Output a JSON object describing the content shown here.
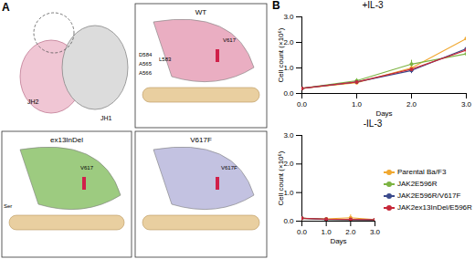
{
  "panel_labels": [
    "A",
    "B"
  ],
  "panel_a": {
    "views": [
      {
        "labels": [
          "JH2",
          "JH1"
        ]
      },
      {
        "title": "WT",
        "labels": [
          "D584",
          "A565",
          "A566",
          "L583",
          "V617"
        ]
      },
      {
        "title": "ex13InDel",
        "labels": [
          "Ser",
          "V617"
        ]
      },
      {
        "title": "V617F",
        "labels": [
          "V617F"
        ]
      }
    ]
  },
  "chart_data": [
    {
      "type": "line",
      "title": "+IL-3",
      "x": [
        0,
        1,
        2,
        3
      ],
      "xlim": [
        0,
        3
      ],
      "xticks": [
        0,
        1,
        2,
        3
      ],
      "ylim": [
        0,
        3
      ],
      "yticks": [
        0,
        1,
        2,
        3
      ],
      "x_label": "Days",
      "y_label": "Cell count (×10⁶)",
      "marker": "circle",
      "series": [
        {
          "name": "Parental Ba/F3",
          "color": "#f0a830",
          "values": [
            0.2,
            0.42,
            1.0,
            2.15
          ],
          "errors": [
            0.02,
            0.08,
            0.2,
            0.7
          ]
        },
        {
          "name": "JAK2E596R",
          "color": "#7cb342",
          "values": [
            0.2,
            0.5,
            1.15,
            1.55
          ],
          "errors": [
            0.02,
            0.08,
            0.15,
            0.2
          ]
        },
        {
          "name": "JAK2E596R/V617F",
          "color": "#3b4a8c",
          "values": [
            0.2,
            0.45,
            0.9,
            1.75
          ],
          "errors": [
            0.02,
            0.06,
            0.12,
            0.2
          ]
        },
        {
          "name": "JAK2ex13InDel/E596R",
          "color": "#c62839",
          "values": [
            0.2,
            0.45,
            0.95,
            1.7
          ],
          "errors": [
            0.02,
            0.06,
            0.1,
            0.15
          ]
        }
      ]
    },
    {
      "type": "line",
      "title": "-IL-3",
      "x": [
        0,
        1,
        2,
        3
      ],
      "xlim": [
        0,
        3
      ],
      "xticks": [
        0,
        1,
        2,
        3
      ],
      "ylim": [
        0,
        3
      ],
      "yticks": [
        0,
        1,
        2,
        3
      ],
      "x_label": "Days",
      "y_label": "Cell count (×10⁶)",
      "marker": "circle",
      "legend": "right",
      "series": [
        {
          "name": "Parental Ba/F3",
          "color": "#f0a830",
          "values": [
            0.1,
            0.08,
            0.12,
            0.05
          ],
          "errors": [
            0.02,
            0.02,
            0.1,
            0.02
          ]
        },
        {
          "name": "JAK2E596R",
          "color": "#7cb342",
          "values": [
            0.1,
            0.06,
            0.05,
            0.04
          ],
          "errors": [
            0.02,
            0.02,
            0.02,
            0.02
          ]
        },
        {
          "name": "JAK2E596R/V617F",
          "color": "#3b4a8c",
          "values": [
            0.1,
            0.06,
            0.05,
            0.04
          ],
          "errors": [
            0.02,
            0.02,
            0.02,
            0.02
          ]
        },
        {
          "name": "JAK2ex13InDel/E596R",
          "color": "#c62839",
          "values": [
            0.1,
            0.07,
            0.06,
            0.05
          ],
          "errors": [
            0.02,
            0.02,
            0.02,
            0.02
          ]
        }
      ]
    }
  ]
}
